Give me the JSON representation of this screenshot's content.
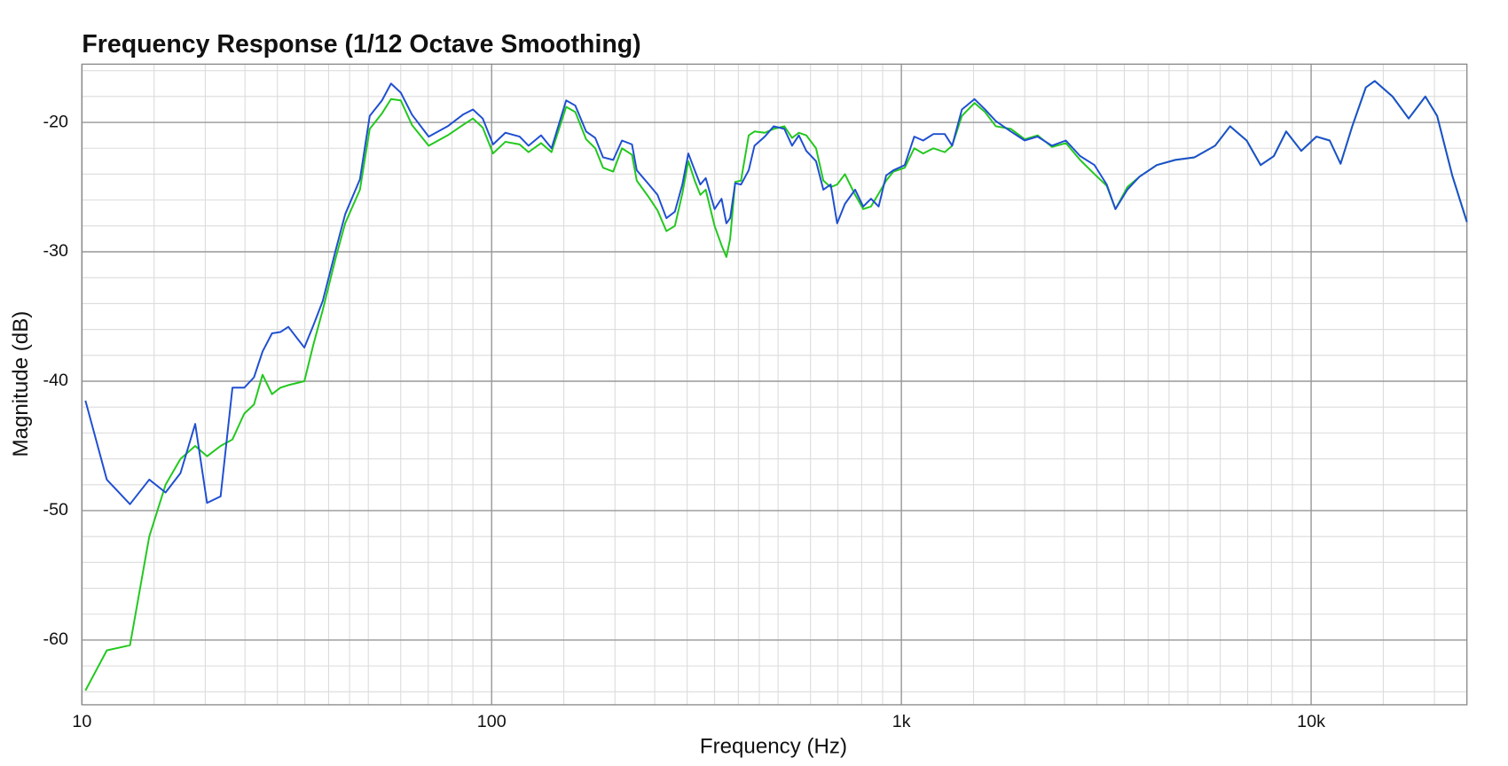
{
  "chart_data": {
    "type": "line",
    "title": "Frequency Response (1/12 Octave Smoothing)",
    "x_label": "Frequency (Hz)",
    "y_label": "Magnitude (dB)",
    "x_log": true,
    "grid": true,
    "minor_grid": true,
    "xlim": [
      10,
      24000
    ],
    "ylim": [
      -65,
      -15.5
    ],
    "xticks": [
      10,
      100,
      {
        "value": 1000,
        "label": "1k"
      },
      {
        "value": 10000,
        "label": "10k"
      }
    ],
    "yticks": [
      -20,
      -30,
      -40,
      -50,
      -60
    ],
    "x": [
      10.2,
      11.5,
      13.1,
      14.6,
      16.0,
      17.4,
      18.9,
      20.2,
      21.8,
      23.3,
      24.9,
      26.3,
      27.6,
      29.1,
      30.5,
      31.9,
      34.9,
      36.7,
      38.7,
      41.6,
      43.9,
      47.7,
      50.4,
      54.0,
      56.8,
      60.0,
      63.9,
      70.2,
      78.1,
      85.1,
      90.0,
      95.1,
      100.8,
      108,
      117,
      123,
      132,
      140,
      152,
      160,
      170,
      179,
      187,
      198,
      208,
      220,
      226,
      242,
      254,
      267,
      280,
      292,
      302,
      313,
      323,
      333,
      350,
      364,
      374,
      382,
      393,
      406,
      424,
      438,
      464,
      488,
      518,
      541,
      562,
      586,
      619,
      645,
      672,
      697,
      728,
      771,
      807,
      843,
      880,
      918,
      956,
      1019,
      1075,
      1130,
      1197,
      1276,
      1330,
      1405,
      1508,
      1600,
      1700,
      1850,
      2000,
      2150,
      2330,
      2520,
      2730,
      2960,
      3170,
      3330,
      3560,
      3810,
      4200,
      4660,
      5190,
      5830,
      6340,
      6960,
      7530,
      8110,
      8690,
      9460,
      10300,
      11100,
      11800,
      12600,
      13600,
      14300,
      15800,
      17300,
      19000,
      20300,
      22100,
      24000
    ],
    "series": [
      {
        "color": "#22c81e",
        "values": [
          -63.9,
          -60.8,
          -60.4,
          -52,
          -48,
          -46,
          -45,
          -45.8,
          -45,
          -44.5,
          -42.5,
          -41.8,
          -39.5,
          -41,
          -40.5,
          -40.3,
          -40,
          -37.2,
          -34.5,
          -30.5,
          -27.8,
          -25.2,
          -20.5,
          -19.3,
          -18.2,
          -18.3,
          -20.2,
          -21.8,
          -21.0,
          -20.2,
          -19.7,
          -20.4,
          -22.4,
          -21.5,
          -21.7,
          -22.3,
          -21.6,
          -22.3,
          -18.8,
          -19.2,
          -21.3,
          -22.0,
          -23.5,
          -23.8,
          -22.0,
          -22.5,
          -24.5,
          -25.8,
          -26.8,
          -28.4,
          -28.0,
          -25.5,
          -23.0,
          -24.5,
          -25.6,
          -25.2,
          -28.0,
          -29.5,
          -30.4,
          -29.0,
          -24.6,
          -24.5,
          -21.0,
          -20.7,
          -20.8,
          -20.5,
          -20.3,
          -21.2,
          -20.8,
          -21.0,
          -22.0,
          -24.5,
          -25.0,
          -24.8,
          -24.0,
          -25.6,
          -26.7,
          -26.5,
          -25.5,
          -24.5,
          -23.8,
          -23.5,
          -22.0,
          -22.4,
          -22.0,
          -22.3,
          -21.8,
          -19.5,
          -18.5,
          -19.2,
          -20.3,
          -20.5,
          -21.3,
          -21.0,
          -21.9,
          -21.6,
          -22.9,
          -24.0,
          -24.9,
          -26.7,
          -25.0,
          -24.2,
          -23.3,
          -22.9,
          -22.7,
          -21.8,
          -20.3,
          -21.4,
          -23.3,
          -22.6,
          -20.7,
          -22.2,
          -21.1,
          -21.4,
          -23.2,
          -20.3,
          -17.3,
          -16.8,
          -18.0,
          -19.7,
          -18.0,
          -19.5,
          -24.1,
          -27.7
        ]
      },
      {
        "color": "#1f4fd1",
        "values": [
          -41.5,
          -47.6,
          -49.5,
          -47.6,
          -48.6,
          -47.1,
          -43.3,
          -49.4,
          -48.9,
          -40.5,
          -40.5,
          -39.7,
          -37.7,
          -36.3,
          -36.2,
          -35.8,
          -37.4,
          -35.7,
          -33.8,
          -29.9,
          -27.1,
          -24.4,
          -19.5,
          -18.3,
          -17.0,
          -17.7,
          -19.4,
          -21.1,
          -20.3,
          -19.4,
          -19.0,
          -19.7,
          -21.7,
          -20.8,
          -21.1,
          -21.8,
          -21.0,
          -22.0,
          -18.3,
          -18.7,
          -20.7,
          -21.2,
          -22.7,
          -22.9,
          -21.4,
          -21.7,
          -23.7,
          -24.8,
          -25.6,
          -27.4,
          -26.9,
          -24.8,
          -22.4,
          -23.7,
          -24.8,
          -24.3,
          -26.7,
          -25.9,
          -27.8,
          -27.4,
          -24.7,
          -24.8,
          -23.7,
          -21.8,
          -21.1,
          -20.3,
          -20.5,
          -21.8,
          -21.0,
          -22.2,
          -23.0,
          -25.2,
          -24.8,
          -27.8,
          -26.3,
          -25.2,
          -26.5,
          -25.9,
          -26.5,
          -24.1,
          -23.7,
          -23.3,
          -21.1,
          -21.4,
          -20.9,
          -20.9,
          -21.8,
          -19.0,
          -18.2,
          -19.0,
          -19.9,
          -20.7,
          -21.4,
          -21.1,
          -21.8,
          -21.4,
          -22.6,
          -23.3,
          -24.8,
          -26.7,
          -25.2,
          -24.2,
          -23.3,
          -22.9,
          -22.7,
          -21.8,
          -20.3,
          -21.4,
          -23.3,
          -22.6,
          -20.7,
          -22.2,
          -21.1,
          -21.4,
          -23.2,
          -20.3,
          -17.3,
          -16.8,
          -18.0,
          -19.7,
          -18.0,
          -19.5,
          -24.1,
          -27.7
        ]
      }
    ]
  }
}
